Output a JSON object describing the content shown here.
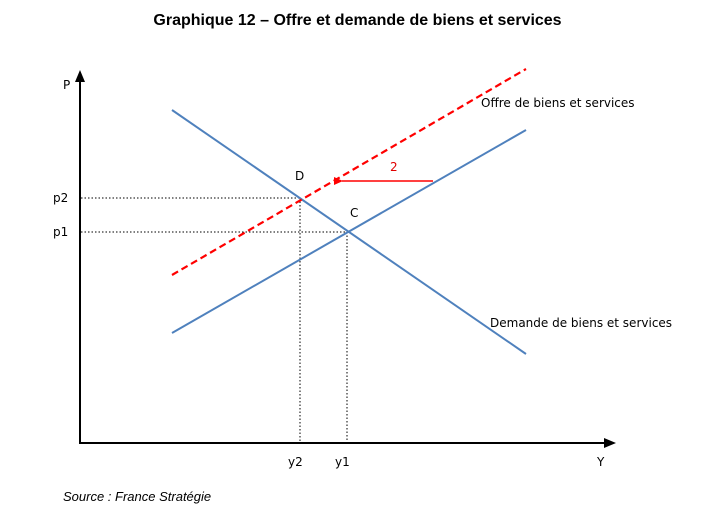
{
  "title": "Graphique 12 – Offre et demande de biens et services",
  "source": "Source : France Stratégie",
  "chart_data": {
    "type": "line",
    "title": "Graphique 12 – Offre et demande de biens et services",
    "xlabel": "Y",
    "ylabel": "P",
    "grid": false,
    "x_ticks": [
      "y2",
      "y1"
    ],
    "y_ticks": [
      "p2",
      "p1"
    ],
    "series": [
      {
        "name": "Demande de biens et services",
        "style": "solid",
        "color": "#4f81bd"
      },
      {
        "name": "Offre de biens et services",
        "style": "solid",
        "color": "#4f81bd"
      },
      {
        "name": "",
        "style": "dashed",
        "color": "#ff0000"
      }
    ],
    "points": [
      {
        "label": "D"
      },
      {
        "label": "C"
      }
    ],
    "annotations": [
      {
        "label": "2",
        "color": "#e00000"
      }
    ]
  }
}
